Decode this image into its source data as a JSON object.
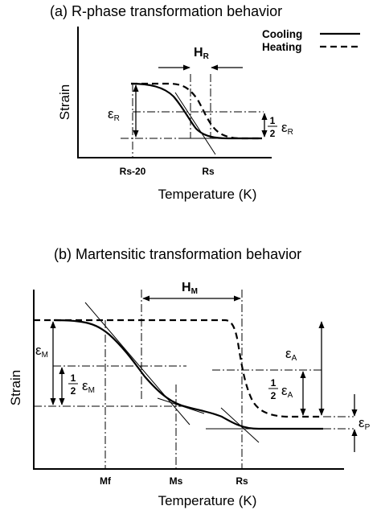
{
  "panel_a": {
    "title": "(a) R-phase transformation behavior",
    "ylabel": "Strain",
    "xlabel": "Temperature (K)",
    "ticks": [
      "Rs-20",
      "Rs"
    ],
    "legend": {
      "cooling": "Cooling",
      "heating": "Heating"
    },
    "hysteresis": {
      "sym": "H",
      "sub": "R"
    },
    "strain": {
      "sym": "ε",
      "sub": "R"
    },
    "half_strain": {
      "num": "1",
      "den": "2",
      "sym": "ε",
      "sub": "R"
    }
  },
  "panel_b": {
    "title": "(b) Martensitic transformation behavior",
    "ylabel": "Strain",
    "xlabel": "Temperature (K)",
    "ticks": [
      "Mf",
      "Ms",
      "Rs"
    ],
    "hysteresis": {
      "sym": "H",
      "sub": "M"
    },
    "strain_m": {
      "sym": "ε",
      "sub": "M"
    },
    "half_strain_m": {
      "num": "1",
      "den": "2",
      "sym": "ε",
      "sub": "M"
    },
    "strain_a": {
      "sym": "ε",
      "sub": "A"
    },
    "half_strain_a": {
      "num": "1",
      "den": "2",
      "sym": "ε",
      "sub": "A"
    },
    "strain_p": {
      "sym": "ε",
      "sub": "P"
    }
  }
}
